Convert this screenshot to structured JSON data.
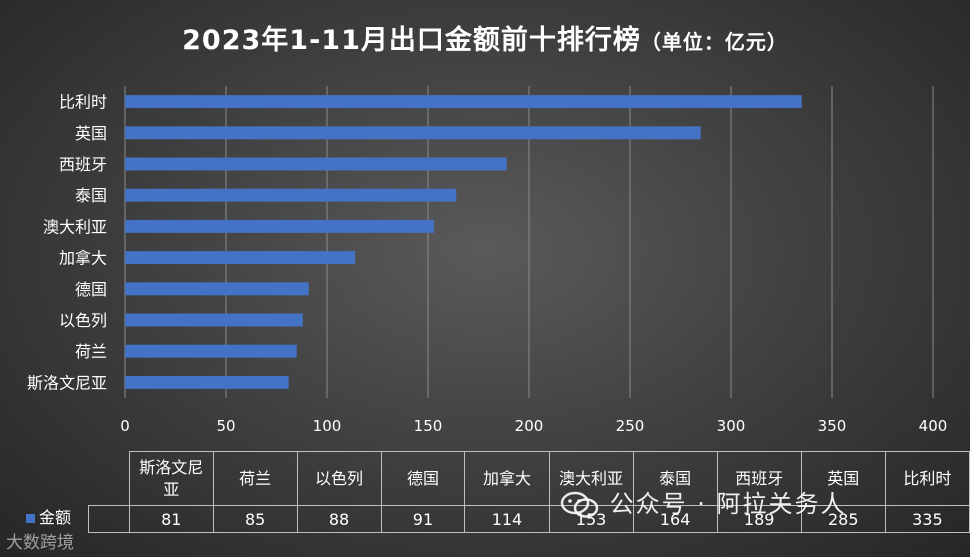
{
  "chart_data": {
    "type": "bar",
    "orientation": "horizontal",
    "title": "2023年1-11月出口金额前十排行榜",
    "title_unit": "（单位：亿元）",
    "categories": [
      "斯洛文尼亚",
      "荷兰",
      "以色列",
      "德国",
      "加拿大",
      "澳大利亚",
      "泰国",
      "西班牙",
      "英国",
      "比利时"
    ],
    "table_categories": [
      "斯洛文尼\n亚",
      "荷兰",
      "以色列",
      "德国",
      "加拿大",
      "澳大利亚",
      "泰国",
      "西班牙",
      "英国",
      "比利时"
    ],
    "series": [
      {
        "name": "金额",
        "values": [
          81,
          85,
          88,
          91,
          114,
          153,
          164,
          189,
          285,
          335
        ],
        "color": "#4472c4"
      }
    ],
    "xlim": [
      0,
      400
    ],
    "x_ticks": [
      0,
      50,
      100,
      150,
      200,
      250,
      300,
      350,
      400
    ],
    "grid": true,
    "data_table": true
  },
  "watermark": {
    "icon": "wechat-icon",
    "text": "公众号 · 阿拉关务人"
  },
  "brand": {
    "text": "大数跨境"
  }
}
